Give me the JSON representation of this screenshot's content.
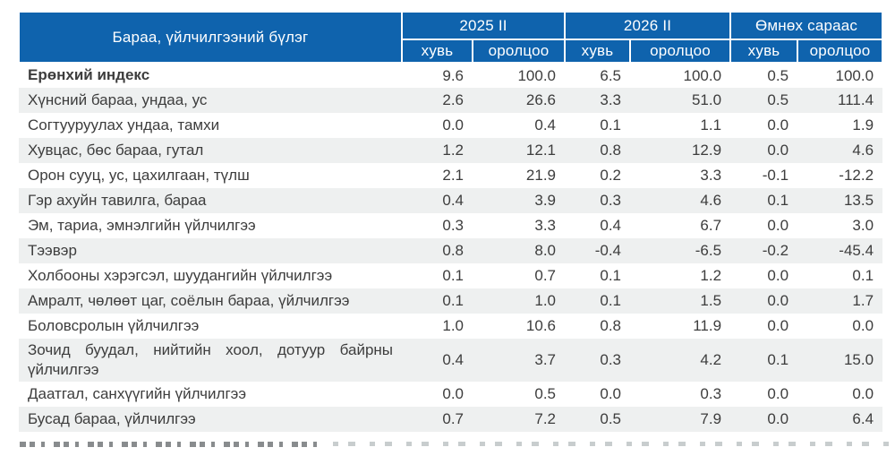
{
  "table": {
    "col_group_header": "Бараа, үйлчилгээний бүлэг",
    "groups": [
      {
        "label": "2025 II"
      },
      {
        "label": "2026 II"
      },
      {
        "label": "Өмнөх сараас"
      }
    ],
    "sub_headers": [
      "хувь",
      "оролцоо",
      "хувь",
      "оролцоо",
      "хувь",
      "оролцоо"
    ],
    "rows": [
      {
        "label": "Ерөнхий индекс",
        "bold": true,
        "values": [
          "9.6",
          "100.0",
          "6.5",
          "100.0",
          "0.5",
          "100.0"
        ]
      },
      {
        "label": "Хүнсний бараа, ундаа, ус",
        "bold": false,
        "values": [
          "2.6",
          "26.6",
          "3.3",
          "51.0",
          "0.5",
          "111.4"
        ]
      },
      {
        "label": "Согтууруулах ундаа, тамхи",
        "bold": false,
        "values": [
          "0.0",
          "0.4",
          "0.1",
          "1.1",
          "0.0",
          "1.9"
        ]
      },
      {
        "label": "Хувцас, бөс бараа, гутал",
        "bold": false,
        "values": [
          "1.2",
          "12.1",
          "0.8",
          "12.9",
          "0.0",
          "4.6"
        ]
      },
      {
        "label": "Орон сууц, ус, цахилгаан, түлш",
        "bold": false,
        "values": [
          "2.1",
          "21.9",
          "0.2",
          "3.3",
          "-0.1",
          "-12.2"
        ]
      },
      {
        "label": "Гэр ахуйн тавилга, бараа",
        "bold": false,
        "values": [
          "0.4",
          "3.9",
          "0.3",
          "4.6",
          "0.1",
          "13.5"
        ]
      },
      {
        "label": "Эм, тариа, эмнэлгийн үйлчилгээ",
        "bold": false,
        "values": [
          "0.3",
          "3.3",
          "0.4",
          "6.7",
          "0.0",
          "3.0"
        ]
      },
      {
        "label": "Тээвэр",
        "bold": false,
        "values": [
          "0.8",
          "8.0",
          "-0.4",
          "-6.5",
          "-0.2",
          "-45.4"
        ]
      },
      {
        "label": "Холбооны хэрэгсэл, шуудангийн үйлчилгээ",
        "bold": false,
        "values": [
          "0.1",
          "0.7",
          "0.1",
          "1.2",
          "0.0",
          "0.1"
        ]
      },
      {
        "label": "Амралт, чөлөөт цаг, соёлын бараа, үйлчилгээ",
        "bold": false,
        "values": [
          "0.1",
          "1.0",
          "0.1",
          "1.5",
          "0.0",
          "1.7"
        ]
      },
      {
        "label": "Боловсролын үйлчилгээ",
        "bold": false,
        "values": [
          "1.0",
          "10.6",
          "0.8",
          "11.9",
          "0.0",
          "0.0"
        ]
      },
      {
        "label": "Зочид буудал, нийтийн хоол, дотуур байрны үйлчилгээ",
        "bold": false,
        "values": [
          "0.4",
          "3.7",
          "0.3",
          "4.2",
          "0.1",
          "15.0"
        ]
      },
      {
        "label": "Даатгал, санхүүгийн үйлчилгээ",
        "bold": false,
        "values": [
          "0.0",
          "0.5",
          "0.0",
          "0.3",
          "0.0",
          "0.0"
        ]
      },
      {
        "label": "Бусад бараа, үйлчилгээ",
        "bold": false,
        "values": [
          "0.7",
          "7.2",
          "0.5",
          "7.9",
          "0.0",
          "6.4"
        ]
      }
    ]
  },
  "colors": {
    "header_bg": "#0f63ad",
    "stripe": "#eef0f0",
    "text": "#3d3d3d",
    "header_text": "#ffffff"
  }
}
